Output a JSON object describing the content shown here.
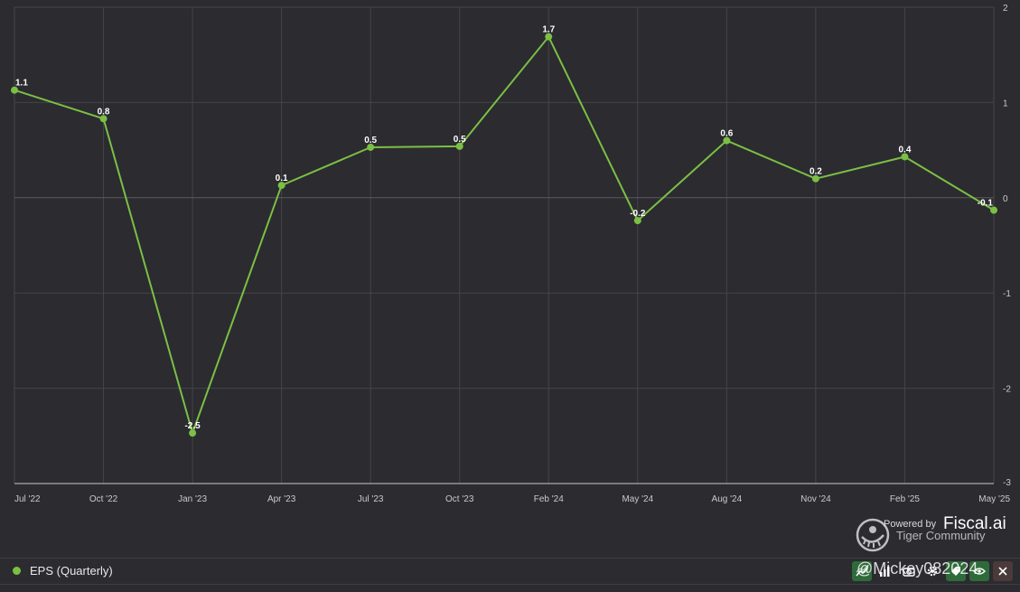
{
  "chart_data": {
    "type": "line",
    "title": "",
    "xlabel": "",
    "ylabel": "",
    "categories": [
      "Jul '22",
      "Oct '22",
      "Jan '23",
      "Apr '23",
      "Jul '23",
      "Oct '23",
      "Feb '24",
      "May '24",
      "Aug '24",
      "Nov '24",
      "Feb '25",
      "May '25"
    ],
    "series": [
      {
        "name": "EPS (Quarterly)",
        "color": "#7bbf44",
        "values": [
          1.13,
          0.83,
          -2.47,
          0.13,
          0.53,
          0.54,
          1.69,
          -0.24,
          0.6,
          0.2,
          0.43,
          -0.13
        ],
        "labels": [
          "1.1",
          "0.8",
          "-2.5",
          "0.1",
          "0.5",
          "0.5",
          "1.7",
          "-0.2",
          "0.6",
          "0.2",
          "0.4",
          "-0.1"
        ]
      }
    ],
    "ylim": [
      -3,
      2
    ],
    "y_ticks": [
      2,
      1,
      0,
      -1,
      -2,
      -3
    ],
    "y_tick_labels": [
      "2",
      "1",
      "0",
      "-1",
      "-2",
      "-3"
    ],
    "y_axis_side": "right",
    "grid": true,
    "legend_position": "bottom-left"
  },
  "legend": {
    "label": "EPS (Quarterly)",
    "color": "#7bbf44"
  },
  "toolbar": {
    "icons": [
      "line-chart-icon",
      "bar-chart-icon",
      "camera-icon",
      "gear-icon",
      "tag-icon",
      "eye-icon",
      "close-icon"
    ]
  },
  "brand": {
    "powered_by": "Powered by",
    "name": "Fiscal.ai",
    "community": "Tiger Community",
    "watermark_user": "@Mickey082024"
  },
  "colors": {
    "background": "#2b2b30",
    "grid": "#44444b",
    "series": "#7bbf44",
    "accent_button": "#2f6b3a"
  }
}
